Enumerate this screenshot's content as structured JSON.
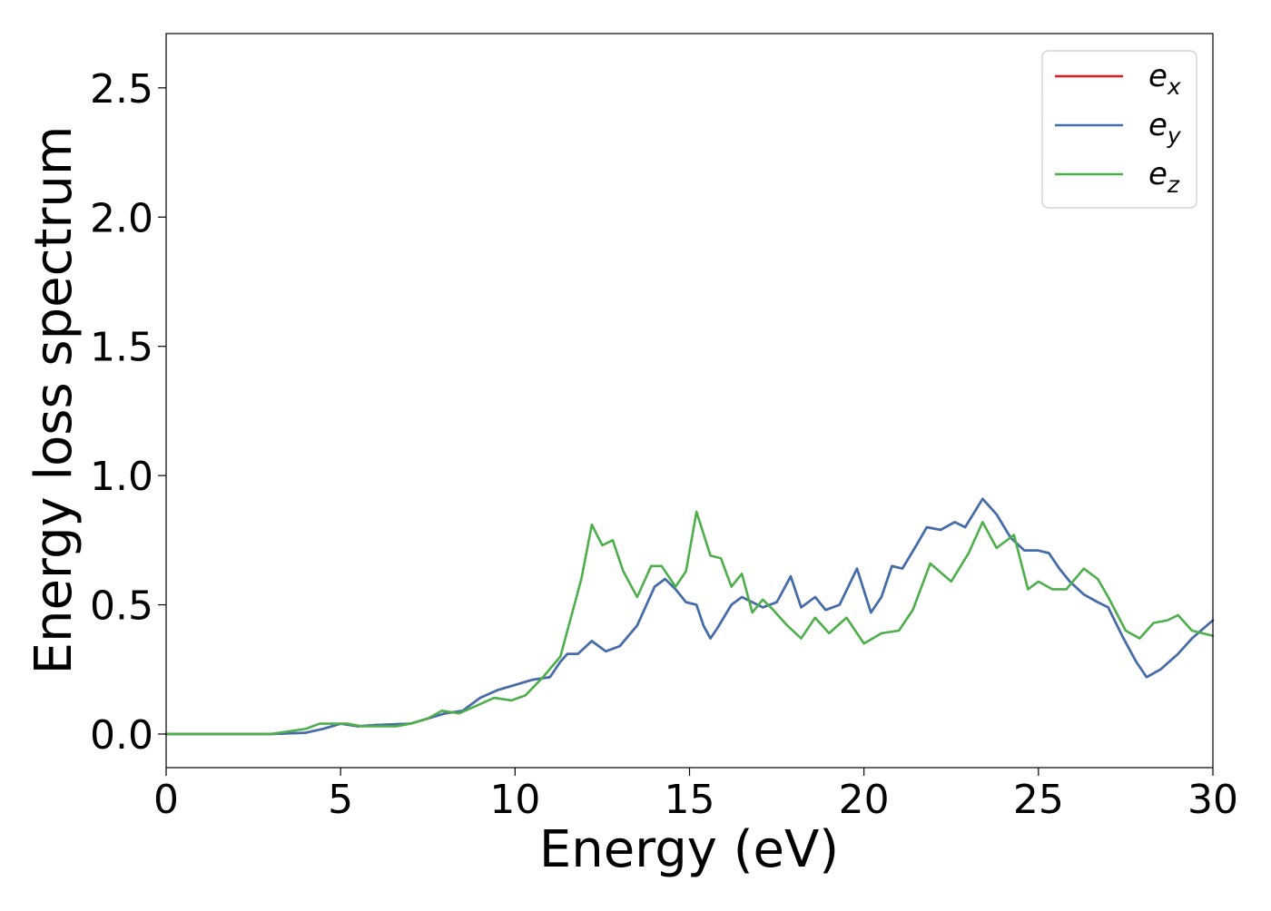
{
  "chart_data": {
    "type": "line",
    "title": "",
    "xlabel": "Energy (eV)",
    "ylabel": "Energy loss spectrum",
    "xlim": [
      0,
      30
    ],
    "ylim": [
      -0.13,
      2.71
    ],
    "x_ticks": [
      0,
      5,
      10,
      15,
      20,
      25,
      30
    ],
    "y_ticks": [
      0.0,
      0.5,
      1.0,
      1.5,
      2.0,
      2.5
    ],
    "x_tick_labels": [
      "0",
      "5",
      "10",
      "15",
      "20",
      "25",
      "30"
    ],
    "y_tick_labels": [
      "0.0",
      "0.5",
      "1.0",
      "1.5",
      "2.0",
      "2.5"
    ],
    "grid": false,
    "legend_position": "top-right",
    "series": [
      {
        "name": "e_x",
        "legend_base": "e",
        "legend_sub": "x",
        "color": "#e41a1c",
        "points": [
          [
            0,
            0.0
          ],
          [
            3,
            0.0
          ],
          [
            4,
            0.005
          ],
          [
            4.5,
            0.02
          ],
          [
            5,
            0.04
          ],
          [
            5.5,
            0.03
          ],
          [
            6,
            0.035
          ],
          [
            7,
            0.04
          ],
          [
            7.5,
            0.06
          ],
          [
            8,
            0.08
          ],
          [
            8.5,
            0.09
          ],
          [
            9,
            0.14
          ],
          [
            9.5,
            0.17
          ],
          [
            10,
            0.19
          ],
          [
            10.5,
            0.21
          ],
          [
            11,
            0.22
          ],
          [
            11.3,
            0.28
          ],
          [
            11.5,
            0.31
          ],
          [
            11.8,
            0.31
          ],
          [
            12.2,
            0.36
          ],
          [
            12.6,
            0.32
          ],
          [
            13,
            0.34
          ],
          [
            13.5,
            0.42
          ],
          [
            14,
            0.57
          ],
          [
            14.3,
            0.6
          ],
          [
            14.6,
            0.56
          ],
          [
            14.9,
            0.51
          ],
          [
            15.2,
            0.5
          ],
          [
            15.4,
            0.42
          ],
          [
            15.6,
            0.37
          ],
          [
            15.8,
            0.41
          ],
          [
            16.2,
            0.5
          ],
          [
            16.5,
            0.53
          ],
          [
            16.8,
            0.51
          ],
          [
            17.1,
            0.49
          ],
          [
            17.5,
            0.51
          ],
          [
            17.9,
            0.61
          ],
          [
            18.2,
            0.49
          ],
          [
            18.6,
            0.53
          ],
          [
            18.9,
            0.48
          ],
          [
            19.3,
            0.5
          ],
          [
            19.8,
            0.64
          ],
          [
            20.2,
            0.47
          ],
          [
            20.5,
            0.53
          ],
          [
            20.8,
            0.65
          ],
          [
            21.1,
            0.64
          ],
          [
            21.5,
            0.73
          ],
          [
            21.8,
            0.8
          ],
          [
            22.2,
            0.79
          ],
          [
            22.6,
            0.82
          ],
          [
            22.9,
            0.8
          ],
          [
            23.4,
            0.91
          ],
          [
            23.8,
            0.85
          ],
          [
            24.2,
            0.76
          ],
          [
            24.6,
            0.71
          ],
          [
            25,
            0.71
          ],
          [
            25.3,
            0.7
          ],
          [
            25.6,
            0.64
          ],
          [
            25.9,
            0.59
          ],
          [
            26.3,
            0.54
          ],
          [
            26.7,
            0.51
          ],
          [
            27,
            0.49
          ],
          [
            27.4,
            0.38
          ],
          [
            27.8,
            0.28
          ],
          [
            28.1,
            0.22
          ],
          [
            28.5,
            0.25
          ],
          [
            29,
            0.31
          ],
          [
            29.4,
            0.37
          ],
          [
            30,
            0.44
          ]
        ]
      },
      {
        "name": "e_y",
        "legend_base": "e",
        "legend_sub": "y",
        "color": "#3e70b0",
        "points": [
          [
            0,
            0.0
          ],
          [
            3,
            0.0
          ],
          [
            4,
            0.005
          ],
          [
            4.5,
            0.02
          ],
          [
            5,
            0.04
          ],
          [
            5.5,
            0.03
          ],
          [
            6,
            0.035
          ],
          [
            7,
            0.04
          ],
          [
            7.5,
            0.06
          ],
          [
            8,
            0.08
          ],
          [
            8.5,
            0.09
          ],
          [
            9,
            0.14
          ],
          [
            9.5,
            0.17
          ],
          [
            10,
            0.19
          ],
          [
            10.5,
            0.21
          ],
          [
            11,
            0.22
          ],
          [
            11.3,
            0.28
          ],
          [
            11.5,
            0.31
          ],
          [
            11.8,
            0.31
          ],
          [
            12.2,
            0.36
          ],
          [
            12.6,
            0.32
          ],
          [
            13,
            0.34
          ],
          [
            13.5,
            0.42
          ],
          [
            14,
            0.57
          ],
          [
            14.3,
            0.6
          ],
          [
            14.6,
            0.56
          ],
          [
            14.9,
            0.51
          ],
          [
            15.2,
            0.5
          ],
          [
            15.4,
            0.42
          ],
          [
            15.6,
            0.37
          ],
          [
            15.8,
            0.41
          ],
          [
            16.2,
            0.5
          ],
          [
            16.5,
            0.53
          ],
          [
            16.8,
            0.51
          ],
          [
            17.1,
            0.49
          ],
          [
            17.5,
            0.51
          ],
          [
            17.9,
            0.61
          ],
          [
            18.2,
            0.49
          ],
          [
            18.6,
            0.53
          ],
          [
            18.9,
            0.48
          ],
          [
            19.3,
            0.5
          ],
          [
            19.8,
            0.64
          ],
          [
            20.2,
            0.47
          ],
          [
            20.5,
            0.53
          ],
          [
            20.8,
            0.65
          ],
          [
            21.1,
            0.64
          ],
          [
            21.5,
            0.73
          ],
          [
            21.8,
            0.8
          ],
          [
            22.2,
            0.79
          ],
          [
            22.6,
            0.82
          ],
          [
            22.9,
            0.8
          ],
          [
            23.4,
            0.91
          ],
          [
            23.8,
            0.85
          ],
          [
            24.2,
            0.76
          ],
          [
            24.6,
            0.71
          ],
          [
            25,
            0.71
          ],
          [
            25.3,
            0.7
          ],
          [
            25.6,
            0.64
          ],
          [
            25.9,
            0.59
          ],
          [
            26.3,
            0.54
          ],
          [
            26.7,
            0.51
          ],
          [
            27,
            0.49
          ],
          [
            27.4,
            0.38
          ],
          [
            27.8,
            0.28
          ],
          [
            28.1,
            0.22
          ],
          [
            28.5,
            0.25
          ],
          [
            29,
            0.31
          ],
          [
            29.4,
            0.37
          ],
          [
            30,
            0.44
          ]
        ]
      },
      {
        "name": "e_z",
        "legend_base": "e",
        "legend_sub": "z",
        "color": "#4daf4a",
        "points": [
          [
            0,
            0.0
          ],
          [
            3,
            0.0
          ],
          [
            3.5,
            0.01
          ],
          [
            4,
            0.02
          ],
          [
            4.4,
            0.04
          ],
          [
            4.8,
            0.04
          ],
          [
            5.2,
            0.04
          ],
          [
            5.6,
            0.03
          ],
          [
            6.1,
            0.03
          ],
          [
            6.6,
            0.03
          ],
          [
            7,
            0.04
          ],
          [
            7.5,
            0.06
          ],
          [
            7.9,
            0.09
          ],
          [
            8.4,
            0.08
          ],
          [
            8.9,
            0.11
          ],
          [
            9.4,
            0.14
          ],
          [
            9.9,
            0.13
          ],
          [
            10.3,
            0.15
          ],
          [
            10.8,
            0.22
          ],
          [
            11.3,
            0.3
          ],
          [
            11.6,
            0.45
          ],
          [
            11.9,
            0.6
          ],
          [
            12.2,
            0.81
          ],
          [
            12.5,
            0.73
          ],
          [
            12.8,
            0.75
          ],
          [
            13.1,
            0.63
          ],
          [
            13.5,
            0.53
          ],
          [
            13.9,
            0.65
          ],
          [
            14.2,
            0.65
          ],
          [
            14.6,
            0.57
          ],
          [
            14.9,
            0.63
          ],
          [
            15.2,
            0.86
          ],
          [
            15.6,
            0.69
          ],
          [
            15.9,
            0.68
          ],
          [
            16.2,
            0.57
          ],
          [
            16.5,
            0.62
          ],
          [
            16.8,
            0.47
          ],
          [
            17.1,
            0.52
          ],
          [
            17.4,
            0.48
          ],
          [
            17.8,
            0.42
          ],
          [
            18.2,
            0.37
          ],
          [
            18.6,
            0.45
          ],
          [
            19,
            0.39
          ],
          [
            19.5,
            0.45
          ],
          [
            20,
            0.35
          ],
          [
            20.5,
            0.39
          ],
          [
            21,
            0.4
          ],
          [
            21.4,
            0.48
          ],
          [
            21.9,
            0.66
          ],
          [
            22.5,
            0.59
          ],
          [
            23,
            0.7
          ],
          [
            23.4,
            0.82
          ],
          [
            23.8,
            0.72
          ],
          [
            24.3,
            0.77
          ],
          [
            24.7,
            0.56
          ],
          [
            25,
            0.59
          ],
          [
            25.4,
            0.56
          ],
          [
            25.8,
            0.56
          ],
          [
            26.3,
            0.64
          ],
          [
            26.7,
            0.6
          ],
          [
            27,
            0.53
          ],
          [
            27.5,
            0.4
          ],
          [
            27.9,
            0.37
          ],
          [
            28.3,
            0.43
          ],
          [
            28.7,
            0.44
          ],
          [
            29,
            0.46
          ],
          [
            29.4,
            0.4
          ],
          [
            30,
            0.38
          ]
        ]
      }
    ]
  }
}
